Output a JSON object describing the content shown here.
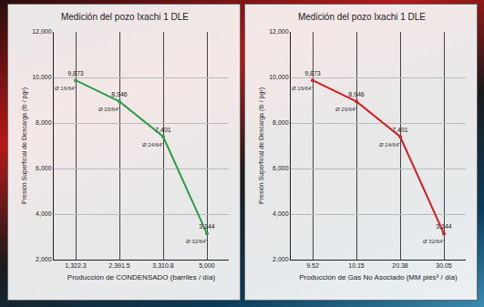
{
  "chart_data": [
    {
      "type": "line",
      "title": "Medición del pozo Ixachi 1 DLE",
      "x_label": "Producción de CONDENSADO (barriles / día)",
      "y_label": "Presión Superficial de Descarga (lb / pg²)",
      "categories": [
        "1,322.3",
        "2,391.5",
        "3,310.8",
        "5,000"
      ],
      "values": [
        9873,
        8946,
        7401,
        3144
      ],
      "value_labels": [
        "9,873",
        "8,946",
        "7,401",
        "3,144"
      ],
      "annotations": [
        "Ø 16/64\"",
        "Ø 20/64\"",
        "Ø 24/64\"",
        "Ø 32/64\""
      ],
      "color": "#2e9e4a",
      "data_labels": true,
      "grid": true,
      "ylim": [
        2000,
        12000
      ],
      "yticks": [
        {
          "value": 2000,
          "label": "2,000"
        },
        {
          "value": 4000,
          "label": "4,000"
        },
        {
          "value": 6000,
          "label": "6,000"
        },
        {
          "value": 8000,
          "label": "8,000"
        },
        {
          "value": 10000,
          "label": "10,000"
        },
        {
          "value": 12000,
          "label": "12,000"
        }
      ]
    },
    {
      "type": "line",
      "title": "Medición del pozo Ixachi 1 DLE",
      "x_label": "Producción de Gas No Asociado (MM pies³ / día)",
      "y_label": "Presión Superficial de Descarga (lb / pg²)",
      "categories": [
        "9.52",
        "10.15",
        "20.38",
        "30.05"
      ],
      "values": [
        9873,
        8946,
        7401,
        3144
      ],
      "value_labels": [
        "9,873",
        "8,946",
        "7,401",
        "3,144"
      ],
      "annotations": [
        "Ø 16/64\"",
        "Ø 20/64\"",
        "Ø 24/64\"",
        "Ø 32/64\""
      ],
      "color": "#d42020",
      "data_labels": true,
      "grid": true,
      "ylim": [
        2000,
        12000
      ],
      "yticks": [
        {
          "value": 2000,
          "label": "2,000"
        },
        {
          "value": 4000,
          "label": "4,000"
        },
        {
          "value": 6000,
          "label": "6,000"
        },
        {
          "value": 8000,
          "label": "8,000"
        },
        {
          "value": 10000,
          "label": "10,000"
        },
        {
          "value": 12000,
          "label": "12,000"
        }
      ]
    }
  ]
}
